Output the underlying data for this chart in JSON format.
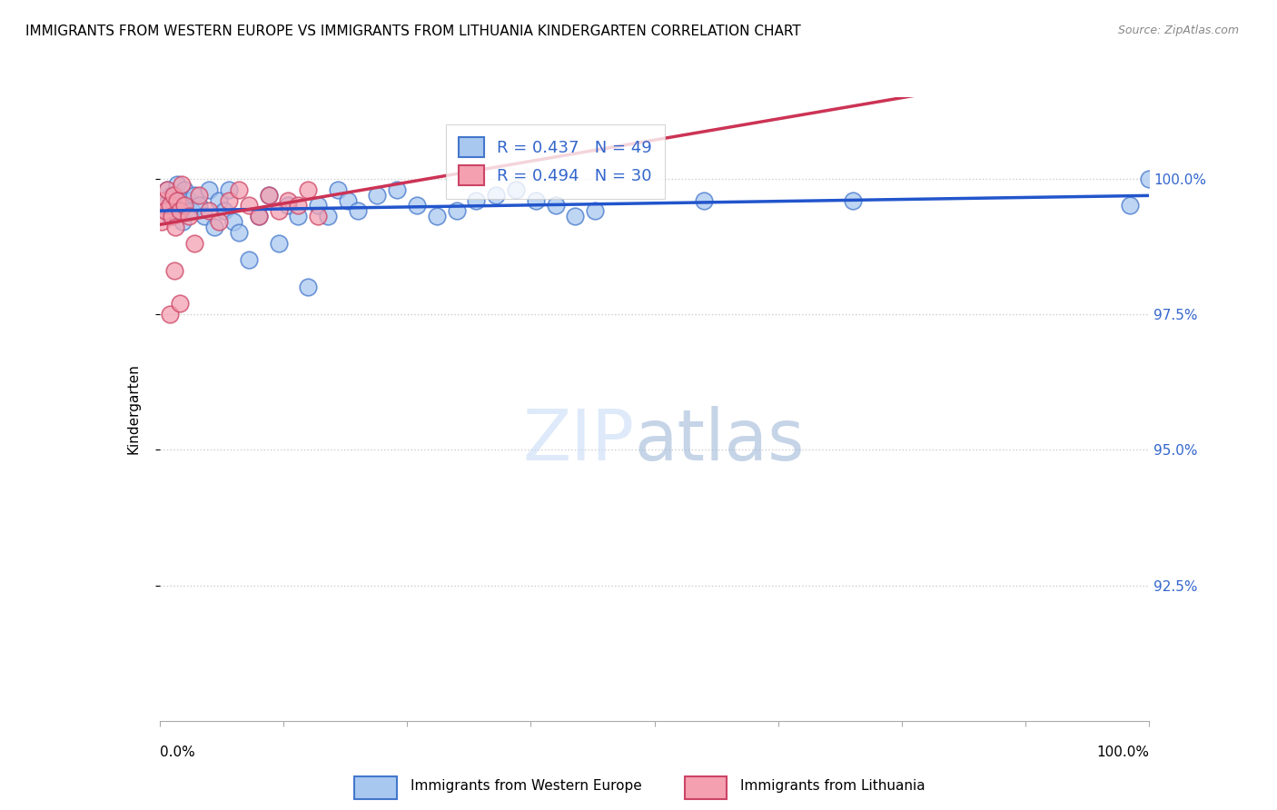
{
  "title": "IMMIGRANTS FROM WESTERN EUROPE VS IMMIGRANTS FROM LITHUANIA KINDERGARTEN CORRELATION CHART",
  "source": "Source: ZipAtlas.com",
  "ylabel": "Kindergarten",
  "x_range": [
    0.0,
    100.0
  ],
  "y_range": [
    90.0,
    101.5
  ],
  "legend_blue_label": "Immigrants from Western Europe",
  "legend_pink_label": "Immigrants from Lithuania",
  "R_blue": 0.437,
  "N_blue": 49,
  "R_pink": 0.494,
  "N_pink": 30,
  "blue_color": "#a8c8f0",
  "blue_edge_color": "#4477cc",
  "blue_line_color": "#2255cc",
  "pink_color": "#f4a0b0",
  "pink_edge_color": "#cc4466",
  "pink_line_color": "#cc3355",
  "y_ticks": [
    92.5,
    95.0,
    97.5,
    100.0
  ],
  "blue_x": [
    0.5,
    0.8,
    1.0,
    1.2,
    1.5,
    1.8,
    2.0,
    2.3,
    2.5,
    3.0,
    3.2,
    3.5,
    4.0,
    4.5,
    5.0,
    5.5,
    6.0,
    6.5,
    7.0,
    7.5,
    8.0,
    9.0,
    10.0,
    11.0,
    12.0,
    13.0,
    14.0,
    15.0,
    16.0,
    17.0,
    18.0,
    19.0,
    20.0,
    22.0,
    24.0,
    26.0,
    28.0,
    30.0,
    32.0,
    34.0,
    36.0,
    38.0,
    40.0,
    42.0,
    44.0,
    55.0,
    70.0,
    98.0,
    100.0
  ],
  "blue_y": [
    99.5,
    99.8,
    99.3,
    99.7,
    99.5,
    99.9,
    99.5,
    99.2,
    99.8,
    99.6,
    99.4,
    99.7,
    99.5,
    99.3,
    99.8,
    99.1,
    99.6,
    99.4,
    99.8,
    99.2,
    99.0,
    98.5,
    99.3,
    99.7,
    98.8,
    99.5,
    99.3,
    98.0,
    99.5,
    99.3,
    99.8,
    99.6,
    99.4,
    99.7,
    99.8,
    99.5,
    99.3,
    99.4,
    99.6,
    99.7,
    99.8,
    99.6,
    99.5,
    99.3,
    99.4,
    99.6,
    99.6,
    99.5,
    100.0
  ],
  "pink_x": [
    0.2,
    0.4,
    0.6,
    0.8,
    1.0,
    1.2,
    1.4,
    1.6,
    1.8,
    2.0,
    2.2,
    2.5,
    3.0,
    3.5,
    4.0,
    5.0,
    6.0,
    7.0,
    8.0,
    9.0,
    10.0,
    11.0,
    12.0,
    13.0,
    14.0,
    15.0,
    16.0,
    1.0,
    1.5,
    2.0
  ],
  "pink_y": [
    99.2,
    99.6,
    99.4,
    99.8,
    99.5,
    99.3,
    99.7,
    99.1,
    99.6,
    99.4,
    99.9,
    99.5,
    99.3,
    98.8,
    99.7,
    99.4,
    99.2,
    99.6,
    99.8,
    99.5,
    99.3,
    99.7,
    99.4,
    99.6,
    99.5,
    99.8,
    99.3,
    97.5,
    98.3,
    97.7
  ]
}
